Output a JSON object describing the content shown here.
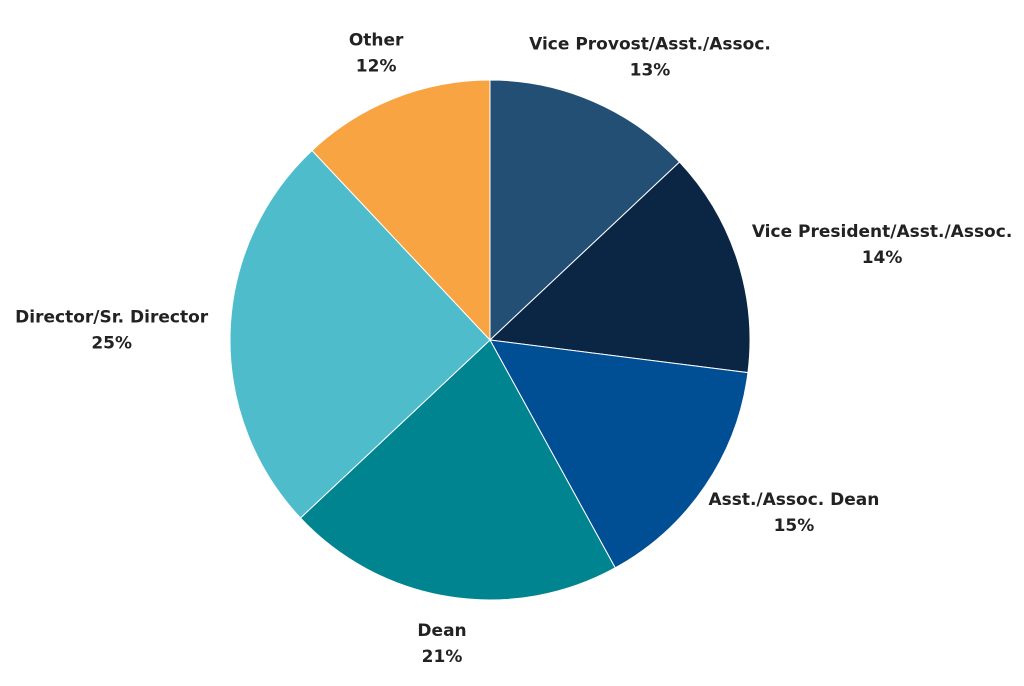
{
  "chart_data": {
    "type": "pie",
    "categories": [
      "Vice Provost/Asst./Assoc.",
      "Vice President/Asst./Assoc.",
      "Asst./Assoc. Dean",
      "Dean",
      "Director/Sr. Director",
      "Other"
    ],
    "values": [
      13,
      14,
      15,
      21,
      25,
      12
    ],
    "value_labels": [
      "13%",
      "14%",
      "15%",
      "21%",
      "25%",
      "12%"
    ],
    "colors": [
      "#234f75",
      "#0b2645",
      "#004f95",
      "#008490",
      "#4fbccc",
      "#f9a442"
    ]
  }
}
